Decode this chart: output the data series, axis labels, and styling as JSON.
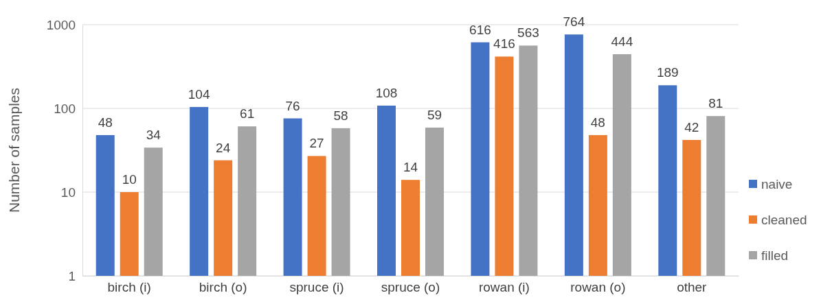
{
  "chart_data": {
    "type": "bar",
    "ylabel": "Number of samples",
    "categories": [
      "birch (i)",
      "birch (o)",
      "spruce (i)",
      "spruce (o)",
      "rowan (i)",
      "rowan (o)",
      "other"
    ],
    "series": [
      {
        "name": "naive",
        "color": "#4472c4",
        "values": [
          48,
          104,
          76,
          108,
          616,
          764,
          189
        ]
      },
      {
        "name": "cleaned",
        "color": "#ed7d31",
        "values": [
          10,
          24,
          27,
          14,
          416,
          48,
          42
        ]
      },
      {
        "name": "filled",
        "color": "#a5a5a5",
        "values": [
          34,
          61,
          58,
          59,
          563,
          444,
          81
        ]
      }
    ],
    "log": true,
    "ylim": [
      1,
      1000
    ],
    "yticks": [
      1,
      10,
      100,
      1000
    ],
    "grid": "y",
    "legend": "right",
    "data_labels": true
  }
}
